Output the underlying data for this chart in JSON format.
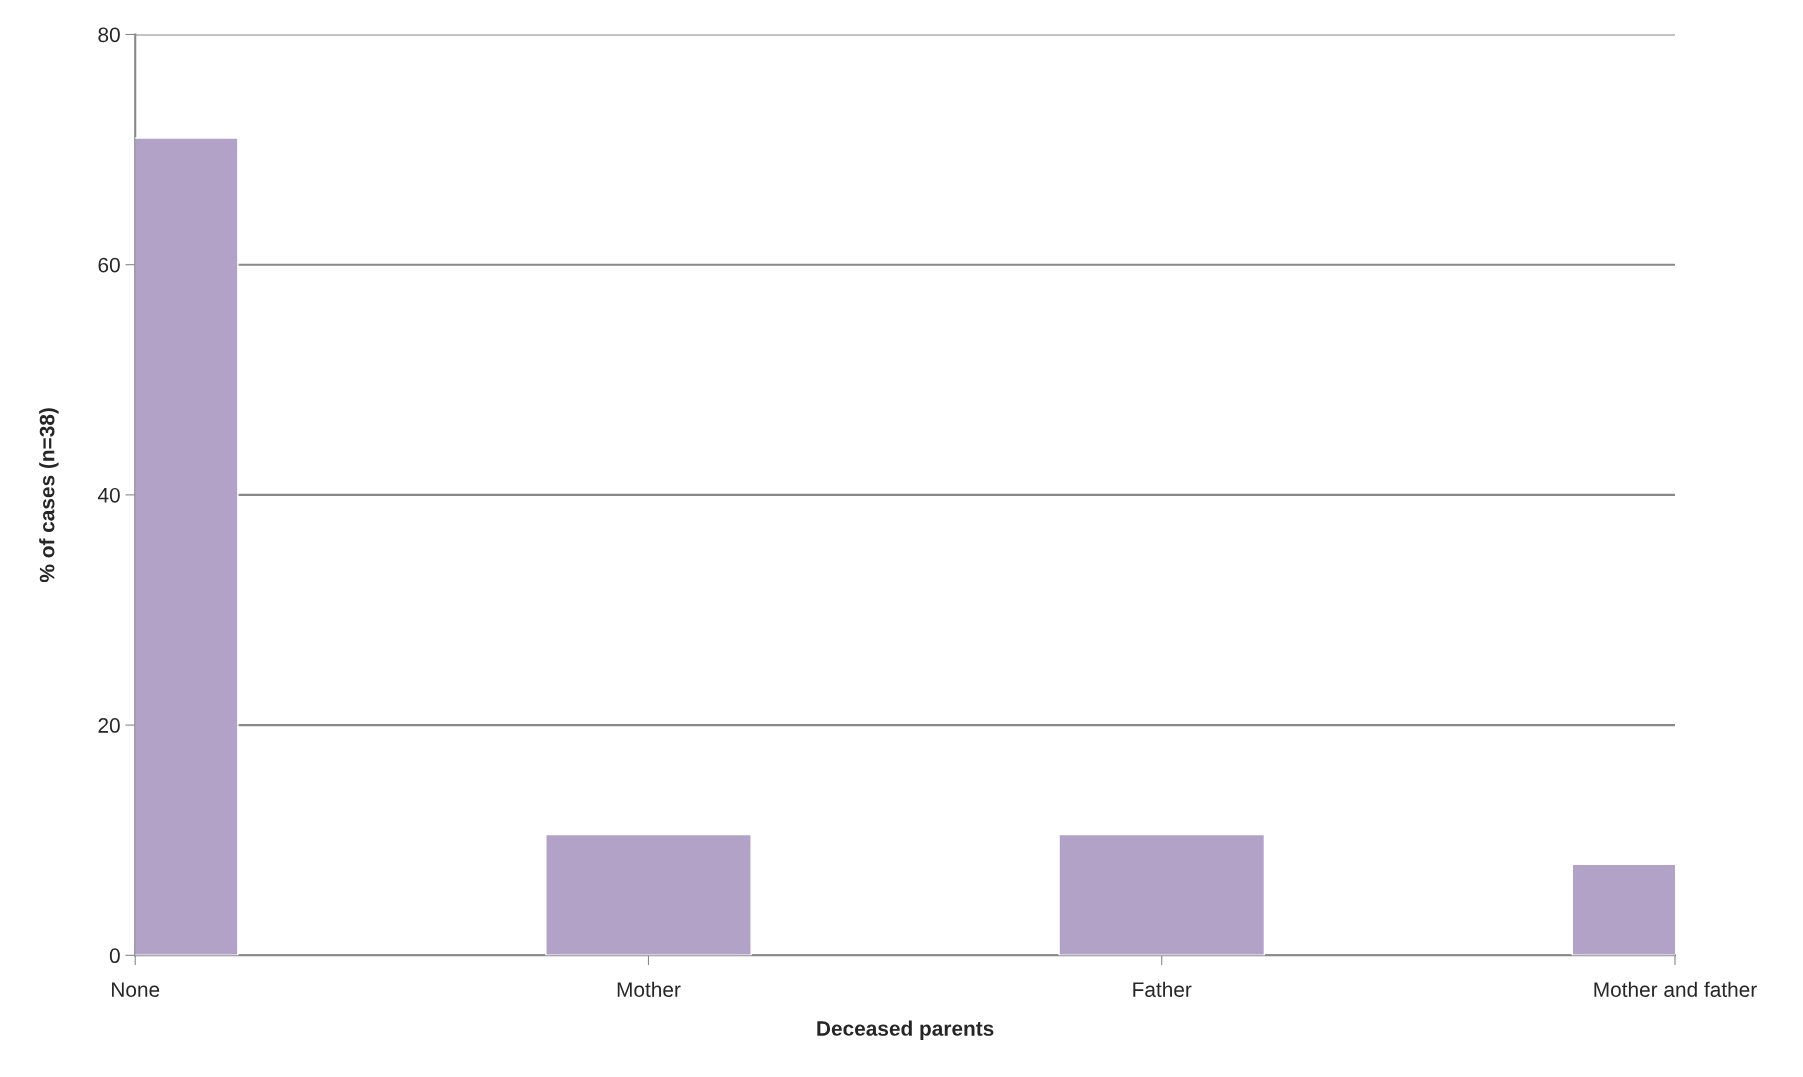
{
  "chart_data": {
    "type": "bar",
    "xlabel": "Deceased parents",
    "ylabel": "% of cases (n=38)",
    "categories": [
      "None",
      "Mother",
      "Father",
      "Mother and father"
    ],
    "values": [
      71,
      10.5,
      10.5,
      7.9
    ],
    "color": "#b3a2c7",
    "ylim": [
      0,
      80
    ],
    "yticks": [
      0,
      20,
      40,
      60,
      80
    ],
    "grid": "y",
    "legend": false
  }
}
